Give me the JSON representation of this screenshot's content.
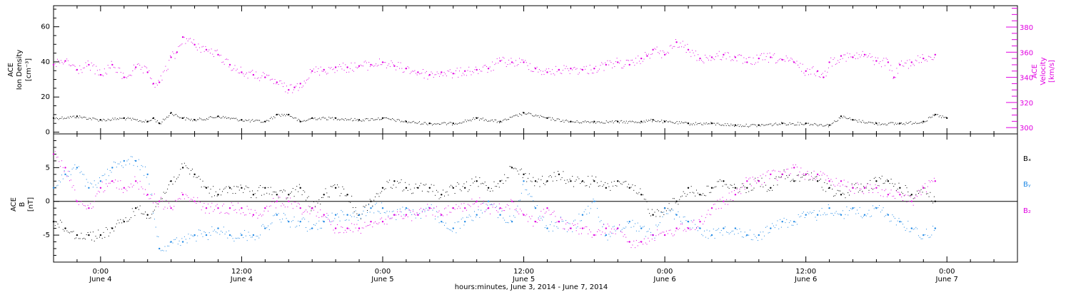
{
  "colors": {
    "black": "#000000",
    "magenta": "#e100e1",
    "blue": "#1e88e5"
  },
  "xaxis": {
    "title": "hours:minutes, June  3, 2014 - June  7, 2014",
    "ticks": [
      {
        "time": "0:00",
        "date": "June 4",
        "hours": 24
      },
      {
        "time": "12:00",
        "date": "June 4",
        "hours": 36
      },
      {
        "time": "0:00",
        "date": "June 5",
        "hours": 48
      },
      {
        "time": "12:00",
        "date": "June 5",
        "hours": 60
      },
      {
        "time": "0:00",
        "date": "June 6",
        "hours": 72
      },
      {
        "time": "12:00",
        "date": "June 6",
        "hours": 84
      },
      {
        "time": "0:00",
        "date": "June 7",
        "hours": 96
      }
    ],
    "range_hours": [
      20,
      102
    ]
  },
  "top_panel": {
    "left_label": [
      "ACE",
      "Ion Density",
      "[cm⁻³]"
    ],
    "right_label": [
      "ACE",
      "Velocity",
      "[km/s]"
    ],
    "left_ticks": [
      "0",
      "20",
      "40",
      "60"
    ],
    "right_ticks": [
      "300",
      "320",
      "340",
      "360",
      "380"
    ]
  },
  "bottom_panel": {
    "left_label": [
      "ACE",
      "B",
      "[nT]"
    ],
    "left_ticks": [
      "-5",
      "0",
      "5"
    ],
    "legend": [
      "Bₓ",
      "Bᵧ",
      "B₂"
    ]
  },
  "chart_data": [
    {
      "type": "scatter",
      "title": "",
      "xlabel": "hours:minutes, June  3, 2014 - June  7, 2014",
      "ylabel": "ACE Ion Density [cm-3]",
      "ylabel_right": "ACE Velocity [km/s]",
      "x_unit": "hours since 2014-06-03 00:00",
      "xlim": [
        20,
        102
      ],
      "ylim": [
        -1,
        72
      ],
      "ylim_right": [
        295,
        397
      ],
      "series": [
        {
          "name": "Ion Density",
          "axis": "left",
          "color": "#000000",
          "x": [
            20,
            22,
            24,
            26,
            28,
            28.5,
            29,
            30,
            31,
            32,
            34,
            36,
            38,
            39,
            40,
            41,
            42,
            44,
            46,
            48,
            50,
            52,
            54,
            56,
            58,
            60,
            62,
            64,
            66,
            68,
            70,
            71,
            72,
            74,
            76,
            78,
            80,
            82,
            84,
            86,
            87,
            88,
            90,
            92,
            94,
            95,
            96
          ],
          "y": [
            8,
            9,
            7,
            8,
            6,
            8,
            5,
            11,
            8,
            7,
            9,
            7,
            6,
            10,
            10,
            6,
            8,
            8,
            7,
            8,
            6,
            5,
            5,
            8,
            6,
            11,
            8,
            6,
            6,
            6,
            6,
            7,
            6,
            5,
            5,
            4,
            4,
            5,
            5,
            4,
            9,
            7,
            5,
            5,
            6,
            10,
            8
          ]
        },
        {
          "name": "Velocity",
          "axis": "right",
          "color": "#e100e1",
          "x": [
            20,
            21,
            22,
            23,
            24,
            25,
            26,
            27,
            28,
            28.5,
            29,
            30,
            30.5,
            31,
            32,
            33,
            34,
            35,
            36,
            37,
            38,
            39,
            40,
            40.5,
            41,
            42,
            43,
            44,
            45,
            46,
            47,
            48,
            49,
            50,
            51,
            52,
            53,
            54,
            55,
            56,
            57,
            58,
            59,
            60,
            61,
            62,
            63,
            64,
            65,
            66,
            67,
            68,
            69,
            70,
            70.5,
            71,
            72,
            73,
            74,
            75,
            76,
            77,
            78,
            79,
            80,
            81,
            82,
            83,
            84,
            85,
            85.5,
            86,
            87,
            88,
            89,
            90,
            91,
            91.5,
            92,
            93,
            94,
            95
          ],
          "y": [
            350,
            353,
            346,
            350,
            342,
            350,
            340,
            348,
            344,
            335,
            336,
            356,
            360,
            372,
            366,
            362,
            358,
            350,
            344,
            342,
            340,
            336,
            330,
            332,
            335,
            345,
            346,
            348,
            348,
            349,
            350,
            352,
            349,
            347,
            344,
            342,
            344,
            343,
            345,
            346,
            347,
            353,
            352,
            352,
            347,
            344,
            346,
            347,
            346,
            347,
            350,
            352,
            350,
            355,
            357,
            362,
            358,
            368,
            362,
            355,
            356,
            358,
            356,
            352,
            355,
            356,
            354,
            352,
            345,
            345,
            340,
            352,
            357,
            356,
            358,
            353,
            352,
            340,
            350,
            352,
            355,
            358
          ]
        }
      ]
    },
    {
      "type": "scatter",
      "title": "",
      "xlabel": "hours:minutes, June  3, 2014 - June  7, 2014",
      "ylabel": "ACE B [nT]",
      "x_unit": "hours since 2014-06-03 00:00",
      "xlim": [
        20,
        102
      ],
      "ylim": [
        -9,
        10
      ],
      "series": [
        {
          "name": "Bx",
          "color": "#000000",
          "x": [
            20,
            21,
            22,
            23,
            24,
            25,
            26,
            27,
            28,
            29,
            30,
            31,
            32,
            33,
            34,
            35,
            36,
            37,
            38,
            39,
            40,
            41,
            42,
            43,
            44,
            45,
            46,
            47,
            48,
            49,
            50,
            51,
            52,
            53,
            54,
            55,
            56,
            57,
            58,
            59,
            60,
            61,
            62,
            63,
            64,
            65,
            66,
            67,
            68,
            69,
            70,
            71,
            72,
            73,
            74,
            75,
            76,
            77,
            78,
            79,
            80,
            81,
            82,
            83,
            84,
            85,
            86,
            87,
            88,
            89,
            90,
            91,
            92,
            93,
            94,
            95
          ],
          "y": [
            -3,
            -4,
            -5,
            -5,
            -5,
            -4,
            -3,
            -1,
            -2,
            0,
            3,
            5,
            4,
            2,
            1,
            2,
            2,
            1,
            2,
            1,
            1,
            2,
            -1,
            1,
            2,
            1,
            -2,
            0,
            2,
            3,
            2,
            2,
            2,
            1,
            2,
            2,
            3,
            2,
            3,
            5,
            4,
            3,
            3,
            4,
            3,
            3,
            3,
            2,
            3,
            2,
            1,
            -2,
            -1,
            0,
            2,
            1,
            2,
            3,
            2,
            2,
            3,
            2,
            4,
            3,
            4,
            3,
            2,
            1,
            2,
            2,
            3,
            3,
            2,
            1,
            2,
            0
          ]
        },
        {
          "name": "By",
          "color": "#1e88e5",
          "x": [
            20,
            21,
            22,
            23,
            24,
            25,
            26,
            27,
            28,
            29,
            30,
            31,
            32,
            33,
            34,
            35,
            36,
            37,
            38,
            39,
            40,
            41,
            42,
            43,
            44,
            45,
            46,
            47,
            48,
            49,
            50,
            51,
            52,
            53,
            54,
            55,
            56,
            57,
            58,
            59,
            60,
            61,
            62,
            63,
            64,
            65,
            66,
            67,
            68,
            69,
            70,
            71,
            72,
            73,
            74,
            75,
            76,
            77,
            78,
            79,
            80,
            81,
            82,
            83,
            84,
            85,
            86,
            87,
            88,
            89,
            90,
            91,
            92,
            93,
            94,
            95
          ],
          "y": [
            2,
            4,
            5,
            2,
            3,
            5,
            6,
            6,
            4,
            -7,
            -6,
            -6,
            -5,
            -5,
            -4,
            -5,
            -5,
            -5,
            -4,
            -2,
            -3,
            -3,
            -4,
            -3,
            -2,
            -2,
            -2,
            -1,
            -1,
            -2,
            -1,
            -2,
            -1,
            -3,
            -4,
            -3,
            -2,
            0,
            -2,
            -3,
            3,
            -1,
            -4,
            -3,
            -4,
            -2,
            0,
            -5,
            -4,
            -3,
            -4,
            -5,
            -1,
            -2,
            -3,
            -4,
            -5,
            -4,
            -4,
            -5,
            -5,
            -4,
            -3,
            -3,
            -2,
            -2,
            -1,
            -2,
            -1,
            -2,
            -1,
            -2,
            -3,
            -4,
            -5,
            -4
          ]
        },
        {
          "name": "Bz",
          "color": "#e100e1",
          "x": [
            20,
            21,
            22,
            23,
            24,
            25,
            26,
            27,
            28,
            29,
            30,
            31,
            32,
            33,
            34,
            35,
            36,
            37,
            38,
            39,
            40,
            41,
            42,
            43,
            44,
            45,
            46,
            47,
            48,
            49,
            50,
            51,
            52,
            53,
            54,
            55,
            56,
            57,
            58,
            59,
            60,
            61,
            62,
            63,
            64,
            65,
            66,
            67,
            68,
            69,
            70,
            71,
            72,
            73,
            74,
            75,
            76,
            77,
            78,
            79,
            80,
            81,
            82,
            83,
            84,
            85,
            86,
            87,
            88,
            89,
            90,
            91,
            92,
            93,
            94,
            95
          ],
          "y": [
            7,
            5,
            0,
            -1,
            2,
            3,
            2,
            3,
            1,
            0,
            -1,
            1,
            0,
            -1,
            -1,
            -1,
            -1,
            -2,
            -1,
            0,
            0,
            -1,
            -1,
            -2,
            -4,
            -4,
            -4,
            -3,
            -3,
            -2,
            -2,
            -2,
            -1,
            -2,
            -1,
            -1,
            0,
            -1,
            -1,
            0,
            -2,
            -3,
            -1,
            -3,
            -4,
            -4,
            -5,
            -4,
            -4,
            -6,
            -6,
            -5,
            -5,
            -4,
            -4,
            -3,
            -1,
            0,
            1,
            3,
            3,
            4,
            4,
            5,
            4,
            4,
            3,
            3,
            2,
            2,
            2,
            1,
            1,
            0,
            2,
            3
          ]
        }
      ]
    }
  ]
}
